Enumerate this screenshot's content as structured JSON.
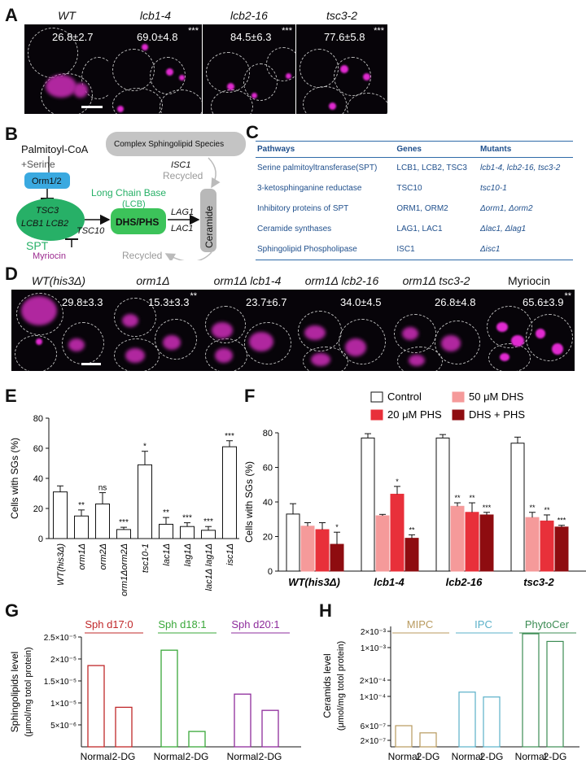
{
  "panels": {
    "a": "A",
    "b": "B",
    "c": "C",
    "d": "D",
    "e": "E",
    "f": "F",
    "g": "G",
    "h": "H"
  },
  "panelA": {
    "images": [
      {
        "genotype": "WT",
        "value": "26.8±2.7",
        "stars": ""
      },
      {
        "genotype": "lcb1-4",
        "value": "69.0±4.8",
        "stars": "***"
      },
      {
        "genotype": "lcb2-16",
        "value": "84.5±6.3",
        "stars": "***"
      },
      {
        "genotype": "tsc3-2",
        "value": "77.6±5.8",
        "stars": "***"
      }
    ]
  },
  "panelB": {
    "palmitoyl": "Palmitoyl-CoA",
    "serine": "+Serine",
    "orm": "Orm1/2",
    "tsc3": "TSC3",
    "lcb12": "LCB1  LCB2",
    "spt": "SPT",
    "myriocin": "Myriocin",
    "tsc10": "TSC10",
    "lcb_title1": "Long Chain Base",
    "lcb_title2": "(LCB)",
    "dhs": "DHS/PHS",
    "lag1": "LAG1",
    "lac1": "LAC1",
    "ceramide": "Ceramide",
    "complex": "Complex Sphingolipid Species",
    "isc1": "ISC1",
    "recycled_top": "Recycled",
    "recycled_bottom": "Recycled"
  },
  "panelC": {
    "headers": [
      "Pathways",
      "Genes",
      "Mutants"
    ],
    "rows": [
      [
        "Serine palmitoyltransferase(SPT)",
        "LCB1, LCB2, TSC3",
        "lcb1-4, lcb2-16, tsc3-2"
      ],
      [
        "3-ketosphinganine reductase",
        "TSC10",
        "tsc10-1"
      ],
      [
        "Inhibitory proteins of SPT",
        "ORM1, ORM2",
        "Δorm1, Δorm2"
      ],
      [
        "Ceramide synthases",
        "LAG1, LAC1",
        "Δlac1, Δlag1"
      ],
      [
        "Sphingolipid Phospholipase",
        "ISC1",
        "Δisc1"
      ]
    ]
  },
  "panelD": {
    "images": [
      {
        "genotype": "WT(his3Δ)",
        "value": "29.8±3.3",
        "stars": "",
        "italic": true
      },
      {
        "genotype": "orm1Δ",
        "value": "15.3±3.3",
        "stars": "**",
        "italic": true
      },
      {
        "genotype": "orm1Δ lcb1-4",
        "value": "23.7±6.7",
        "stars": "",
        "italic": true
      },
      {
        "genotype": "orm1Δ lcb2-16",
        "value": "34.0±4.5",
        "stars": "",
        "italic": true
      },
      {
        "genotype": "orm1Δ tsc3-2",
        "value": "26.8±4.8",
        "stars": "",
        "italic": true
      },
      {
        "genotype": "Myriocin",
        "value": "65.6±3.9",
        "stars": "**",
        "italic": false
      }
    ]
  },
  "chart_data": [
    {
      "id": "E",
      "type": "bar",
      "ylabel": "Cells with SGs (%)",
      "ylim": [
        0,
        80
      ],
      "yticks": [
        0,
        20,
        40,
        60,
        80
      ],
      "categories": [
        "WT(his3Δ)",
        "orm1Δ",
        "orm2Δ",
        "orm1Δorm2Δ",
        "tsc10-1",
        "lac1Δ",
        "lag1Δ",
        "lac1Δ lag1Δ",
        "isc1Δ"
      ],
      "values": [
        31,
        15,
        23,
        6,
        49,
        9.5,
        8,
        5.5,
        61
      ],
      "errors": [
        4,
        4,
        7.5,
        1.5,
        9,
        4.5,
        2.5,
        2.5,
        4
      ],
      "significance": [
        "",
        "**",
        "ns",
        "***",
        "*",
        "**",
        "***",
        "***",
        "***"
      ]
    },
    {
      "id": "F",
      "type": "bar",
      "ylabel": "Cells with SGs (%)",
      "ylim": [
        0,
        80
      ],
      "yticks": [
        0,
        20,
        40,
        60,
        80
      ],
      "categories": [
        "WT(his3Δ)",
        "lcb1-4",
        "lcb2-16",
        "tsc3-2"
      ],
      "series": [
        {
          "name": "Control",
          "color": "#ffffff",
          "values": [
            33,
            77,
            77,
            74
          ],
          "errors": [
            6,
            2.5,
            2,
            3.5
          ],
          "sig": [
            "",
            "",
            "",
            ""
          ]
        },
        {
          "name": "50 μM DHS",
          "color": "#f59a9a",
          "values": [
            26,
            32,
            37.5,
            31
          ],
          "errors": [
            2,
            0.8,
            2,
            3
          ],
          "sig": [
            "",
            "",
            "**",
            "**"
          ]
        },
        {
          "name": "20 μM PHS",
          "color": "#e8303a",
          "values": [
            24,
            44.5,
            34,
            29
          ],
          "errors": [
            4,
            4.5,
            5.5,
            3.5
          ],
          "sig": [
            "",
            "*",
            "**",
            "**"
          ]
        },
        {
          "name": "DHS + PHS",
          "color": "#8e0c10",
          "values": [
            15.5,
            19,
            32.5,
            25.5
          ],
          "errors": [
            7,
            2,
            1.5,
            1
          ],
          "sig": [
            "*",
            "**",
            "***",
            "***"
          ]
        }
      ]
    },
    {
      "id": "G",
      "type": "bar",
      "ylabel": "Sphingolipids level",
      "yunit": "(μmol/mg totol protein)",
      "ylim": [
        0,
        2.5e-05
      ],
      "yticks": [
        "5×10⁻⁶",
        "1×10⁻⁵",
        "1.5×10⁻⁵",
        "2×10⁻⁵",
        "2.5×10⁻⁵"
      ],
      "groups": [
        {
          "name": "Sph d17:0",
          "color": "#c0282a",
          "values": [
            1.85e-05,
            9e-06
          ]
        },
        {
          "name": "Sph d18:1",
          "color": "#3aa83a",
          "values": [
            2.2e-05,
            3.5e-06
          ]
        },
        {
          "name": "Sph d20:1",
          "color": "#8e2c9c",
          "values": [
            1.2e-05,
            8.3e-06
          ]
        }
      ],
      "xlabels": [
        "Normal",
        "2-DG"
      ]
    },
    {
      "id": "H",
      "type": "bar",
      "ylabel": "Ceramids level",
      "yunit": "(μmol/mg totol protein)",
      "yticks": [
        "2×10⁻⁷",
        "6×10⁻⁷",
        "1×10⁻⁴",
        "2×10⁻⁴",
        "1×10⁻³",
        "2×10⁻³"
      ],
      "groups": [
        {
          "name": "MIPC",
          "color": "#b89a5e",
          "values": [
            6e-07,
            3.5e-07
          ]
        },
        {
          "name": "IPC",
          "color": "#5ab0c8",
          "values": [
            0.00012,
            9e-05
          ]
        },
        {
          "name": "PhytoCer",
          "color": "#3c8c54",
          "values": [
            0.0018,
            0.0013
          ]
        }
      ],
      "xlabels": [
        "Normal",
        "2-DG"
      ]
    }
  ]
}
